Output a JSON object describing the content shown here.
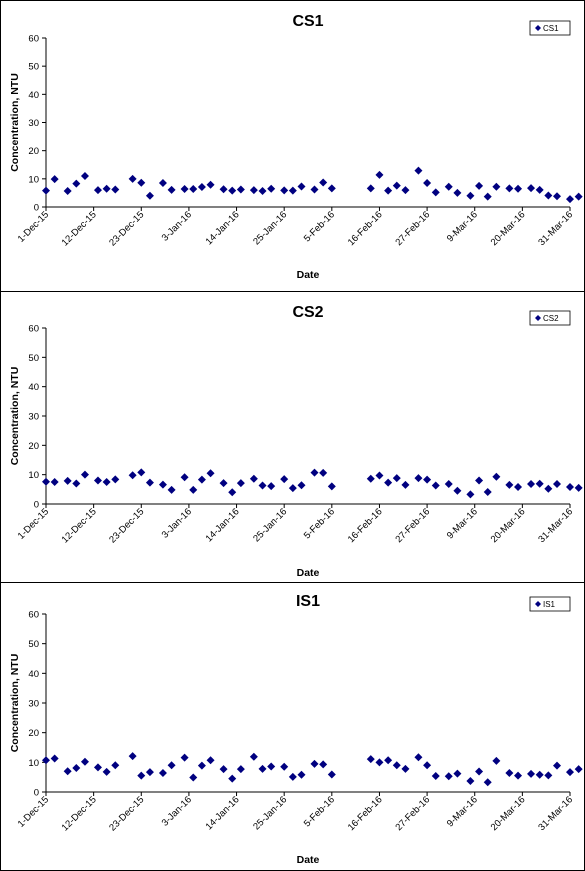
{
  "chart_data": [
    {
      "type": "scatter",
      "title": "CS1",
      "xlabel": "Date",
      "ylabel": "Concentration, NTU",
      "ylim": [
        0,
        60
      ],
      "yticks": [
        0,
        10,
        20,
        30,
        40,
        50,
        60
      ],
      "xlim": [
        "2015-12-01",
        "2016-03-31"
      ],
      "xtick_labels": [
        "1-Dec-15",
        "12-Dec-15",
        "23-Dec-15",
        "3-Jan-16",
        "14-Jan-16",
        "25-Jan-16",
        "5-Feb-16",
        "16-Feb-16",
        "27-Feb-16",
        "9-Mar-16",
        "20-Mar-16",
        "31-Mar-16"
      ],
      "legend": "top-right",
      "grid": false,
      "marker_color": "#000080",
      "series": [
        {
          "name": "CS1",
          "x": [
            "2015-12-01",
            "2015-12-03",
            "2015-12-06",
            "2015-12-08",
            "2015-12-10",
            "2015-12-13",
            "2015-12-15",
            "2015-12-17",
            "2015-12-21",
            "2015-12-23",
            "2015-12-25",
            "2015-12-28",
            "2015-12-30",
            "2016-01-02",
            "2016-01-04",
            "2016-01-06",
            "2016-01-08",
            "2016-01-11",
            "2016-01-13",
            "2016-01-15",
            "2016-01-18",
            "2016-01-20",
            "2016-01-22",
            "2016-01-25",
            "2016-01-27",
            "2016-01-29",
            "2016-02-01",
            "2016-02-03",
            "2016-02-05",
            "2016-02-14",
            "2016-02-16",
            "2016-02-18",
            "2016-02-20",
            "2016-02-22",
            "2016-02-25",
            "2016-02-27",
            "2016-02-29",
            "2016-03-03",
            "2016-03-05",
            "2016-03-08",
            "2016-03-10",
            "2016-03-12",
            "2016-03-14",
            "2016-03-17",
            "2016-03-19",
            "2016-03-22",
            "2016-03-24",
            "2016-03-26",
            "2016-03-28",
            "2016-03-31",
            "2016-04-02"
          ],
          "y": [
            5.8,
            9.9,
            5.7,
            8.3,
            11.0,
            6.0,
            6.5,
            6.2,
            10.0,
            8.6,
            4.0,
            8.5,
            6.1,
            6.4,
            6.4,
            7.1,
            7.9,
            6.3,
            5.8,
            6.2,
            6.0,
            5.7,
            6.5,
            5.9,
            5.8,
            7.3,
            6.2,
            8.7,
            6.6,
            6.6,
            11.4,
            5.8,
            7.6,
            6.0,
            12.9,
            8.5,
            5.2,
            7.2,
            5.0,
            4.0,
            7.5,
            3.7,
            7.2,
            6.6,
            6.5,
            6.7,
            6.1,
            4.1,
            3.8,
            2.8,
            3.7
          ]
        }
      ]
    },
    {
      "type": "scatter",
      "title": "CS2",
      "xlabel": "Date",
      "ylabel": "Concentration, NTU",
      "ylim": [
        0,
        60
      ],
      "yticks": [
        0,
        10,
        20,
        30,
        40,
        50,
        60
      ],
      "xlim": [
        "2015-12-01",
        "2016-03-31"
      ],
      "xtick_labels": [
        "1-Dec-15",
        "12-Dec-15",
        "23-Dec-15",
        "3-Jan-16",
        "14-Jan-16",
        "25-Jan-16",
        "5-Feb-16",
        "16-Feb-16",
        "27-Feb-16",
        "9-Mar-16",
        "20-Mar-16",
        "31-Mar-16"
      ],
      "legend": "top-right",
      "grid": false,
      "marker_color": "#000080",
      "series": [
        {
          "name": "CS2",
          "x": [
            "2015-12-01",
            "2015-12-03",
            "2015-12-06",
            "2015-12-08",
            "2015-12-10",
            "2015-12-13",
            "2015-12-15",
            "2015-12-17",
            "2015-12-21",
            "2015-12-23",
            "2015-12-25",
            "2015-12-28",
            "2015-12-30",
            "2016-01-02",
            "2016-01-04",
            "2016-01-06",
            "2016-01-08",
            "2016-01-11",
            "2016-01-13",
            "2016-01-15",
            "2016-01-18",
            "2016-01-20",
            "2016-01-22",
            "2016-01-25",
            "2016-01-27",
            "2016-01-29",
            "2016-02-01",
            "2016-02-03",
            "2016-02-05",
            "2016-02-14",
            "2016-02-16",
            "2016-02-18",
            "2016-02-20",
            "2016-02-22",
            "2016-02-25",
            "2016-02-27",
            "2016-02-29",
            "2016-03-03",
            "2016-03-05",
            "2016-03-08",
            "2016-03-10",
            "2016-03-12",
            "2016-03-14",
            "2016-03-17",
            "2016-03-19",
            "2016-03-22",
            "2016-03-24",
            "2016-03-26",
            "2016-03-28",
            "2016-03-31",
            "2016-04-02"
          ],
          "y": [
            7.6,
            7.5,
            7.9,
            7.0,
            10.0,
            8.0,
            7.5,
            8.4,
            9.8,
            10.8,
            7.3,
            6.6,
            4.8,
            9.1,
            4.8,
            8.3,
            10.5,
            7.1,
            4.0,
            7.1,
            8.6,
            6.3,
            6.1,
            8.5,
            5.4,
            6.4,
            10.7,
            10.6,
            6.0,
            8.6,
            9.7,
            7.3,
            8.8,
            6.5,
            8.8,
            8.3,
            6.3,
            6.8,
            4.5,
            3.3,
            8.0,
            4.1,
            9.3,
            6.5,
            5.8,
            6.8,
            6.9,
            5.2,
            6.8,
            5.8,
            5.5
          ]
        }
      ]
    },
    {
      "type": "scatter",
      "title": "IS1",
      "xlabel": "Date",
      "ylabel": "Concentration, NTU",
      "ylim": [
        0,
        60
      ],
      "yticks": [
        0,
        10,
        20,
        30,
        40,
        50,
        60
      ],
      "xlim": [
        "2015-12-01",
        "2016-03-31"
      ],
      "xtick_labels": [
        "1-Dec-15",
        "12-Dec-15",
        "23-Dec-15",
        "3-Jan-16",
        "14-Jan-16",
        "25-Jan-16",
        "5-Feb-16",
        "16-Feb-16",
        "27-Feb-16",
        "9-Mar-16",
        "20-Mar-16",
        "31-Mar-16"
      ],
      "legend": "top-right",
      "grid": false,
      "marker_color": "#000080",
      "series": [
        {
          "name": "IS1",
          "x": [
            "2015-12-01",
            "2015-12-03",
            "2015-12-06",
            "2015-12-08",
            "2015-12-10",
            "2015-12-13",
            "2015-12-15",
            "2015-12-17",
            "2015-12-21",
            "2015-12-23",
            "2015-12-25",
            "2015-12-28",
            "2015-12-30",
            "2016-01-02",
            "2016-01-04",
            "2016-01-06",
            "2016-01-08",
            "2016-01-11",
            "2016-01-13",
            "2016-01-15",
            "2016-01-18",
            "2016-01-20",
            "2016-01-22",
            "2016-01-25",
            "2016-01-27",
            "2016-01-29",
            "2016-02-01",
            "2016-02-03",
            "2016-02-05",
            "2016-02-14",
            "2016-02-16",
            "2016-02-18",
            "2016-02-20",
            "2016-02-22",
            "2016-02-25",
            "2016-02-27",
            "2016-02-29",
            "2016-03-03",
            "2016-03-05",
            "2016-03-08",
            "2016-03-10",
            "2016-03-12",
            "2016-03-14",
            "2016-03-17",
            "2016-03-19",
            "2016-03-22",
            "2016-03-24",
            "2016-03-26",
            "2016-03-28",
            "2016-03-31",
            "2016-04-02"
          ],
          "y": [
            10.7,
            11.3,
            7.0,
            8.1,
            10.2,
            8.3,
            6.8,
            9.0,
            12.1,
            5.5,
            6.7,
            6.4,
            9.0,
            11.6,
            4.9,
            8.9,
            10.7,
            7.7,
            4.5,
            7.7,
            11.9,
            7.8,
            8.6,
            8.5,
            5.1,
            5.8,
            9.5,
            9.3,
            5.9,
            11.1,
            10.0,
            10.7,
            9.0,
            7.8,
            11.7,
            9.0,
            5.4,
            5.3,
            6.2,
            3.7,
            6.9,
            3.3,
            10.5,
            6.4,
            5.5,
            6.1,
            5.8,
            5.6,
            8.9,
            6.7,
            7.7
          ]
        }
      ]
    }
  ]
}
